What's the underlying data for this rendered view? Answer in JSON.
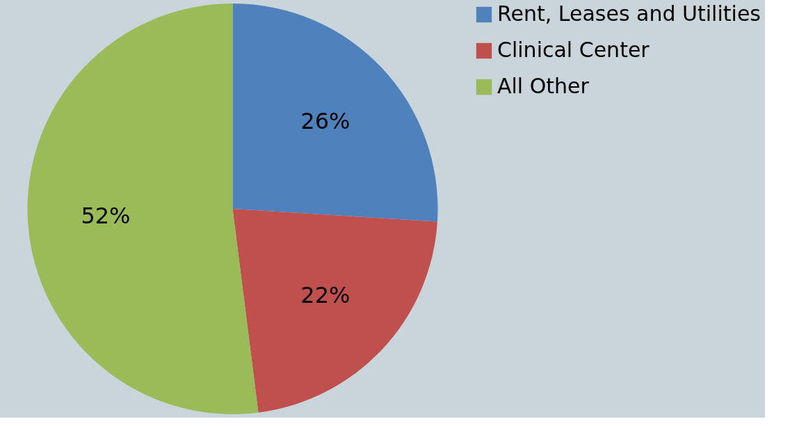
{
  "chart_data": {
    "type": "pie",
    "categories": [
      "Rent, Leases and Utilities",
      "Clinical Center",
      "All Other"
    ],
    "values": [
      26,
      22,
      52
    ],
    "colors": [
      "#4f81bd",
      "#c0504d",
      "#9bbb59"
    ],
    "value_labels": [
      "26%",
      "22%",
      "52%"
    ],
    "legend": "right"
  }
}
